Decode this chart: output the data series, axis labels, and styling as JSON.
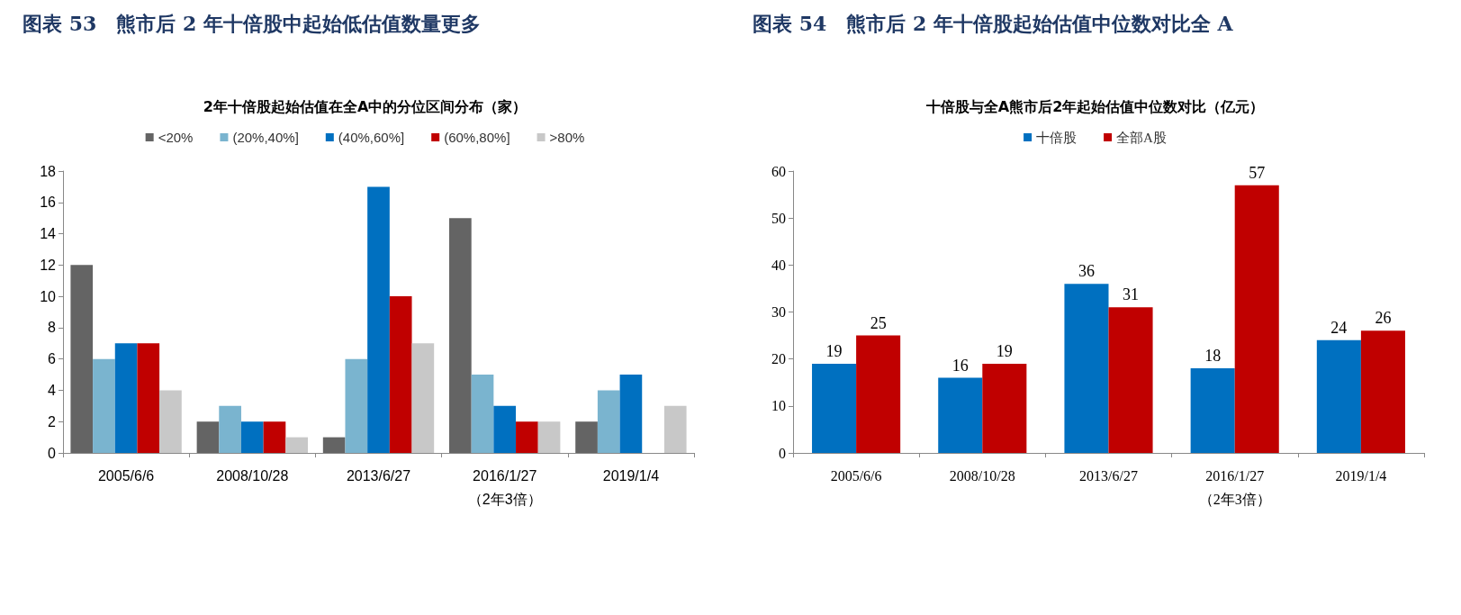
{
  "chart_data": [
    {
      "type": "bar",
      "title": "图表 53　熊市后 2 年十倍股中起始低估值数量更多",
      "subtitle": "2年十倍股起始估值在全A中的分位区间分布（家）",
      "categories": [
        "2005/6/6",
        "2008/10/28",
        "2013/6/27",
        "2016/1/27\n（2年3倍）",
        "2019/1/4"
      ],
      "series": [
        {
          "name": "<20%",
          "color": "#646464",
          "values": [
            12,
            2,
            1,
            15,
            2
          ]
        },
        {
          "name": "(20%,40%]",
          "color": "#7ab4cf",
          "values": [
            6,
            3,
            6,
            5,
            4
          ]
        },
        {
          "name": "(40%,60%]",
          "color": "#0070c0",
          "values": [
            7,
            2,
            17,
            3,
            5
          ]
        },
        {
          "name": "(60%,80%]",
          "color": "#c00000",
          "values": [
            7,
            2,
            10,
            2,
            0
          ]
        },
        {
          "name": ">80%",
          "color": "#c8c8c8",
          "values": [
            4,
            1,
            7,
            2,
            3
          ]
        }
      ],
      "ylim": [
        0,
        18
      ],
      "yticks": [
        0,
        2,
        4,
        6,
        8,
        10,
        12,
        14,
        16,
        18
      ],
      "grid": false,
      "legend": "top"
    },
    {
      "type": "bar",
      "title": "图表 54　熊市后 2 年十倍股起始估值中位数对比全 A",
      "subtitle": "十倍股与全A熊市后2年起始估值中位数对比（亿元）",
      "categories": [
        "2005/6/6",
        "2008/10/28",
        "2013/6/27",
        "2016/1/27\n（2年3倍）",
        "2019/1/4"
      ],
      "series": [
        {
          "name": "十倍股",
          "color": "#0070c0",
          "values": [
            19,
            16,
            36,
            18,
            24
          ]
        },
        {
          "name": "全部A股",
          "color": "#c00000",
          "values": [
            25,
            19,
            31,
            57,
            26
          ]
        }
      ],
      "ylim": [
        0,
        60
      ],
      "yticks": [
        0,
        10,
        20,
        30,
        40,
        50,
        60
      ],
      "grid": false,
      "legend": "top",
      "data_labels": true
    }
  ]
}
